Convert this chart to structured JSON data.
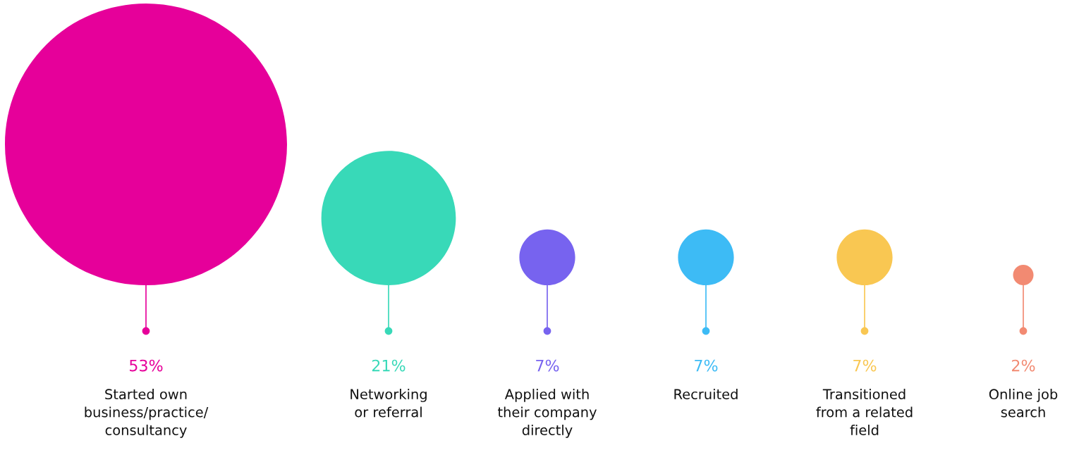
{
  "chart_data": {
    "type": "other",
    "categories": [
      "Started own\nbusiness/practice/\nconsultancy",
      "Networking\nor referral",
      "Applied with\ntheir company\ndirectly",
      "Recruited",
      "Transitioned\nfrom a related\nfield",
      "Online job\nsearch"
    ],
    "values": [
      53,
      21,
      7,
      7,
      7,
      2
    ],
    "value_labels": [
      "53%",
      "21%",
      "7%",
      "7%",
      "7%",
      "2%"
    ],
    "colors": [
      "#e6009a",
      "#38d9b8",
      "#7763ef",
      "#3dbbf5",
      "#f9c752",
      "#f28a72"
    ]
  }
}
